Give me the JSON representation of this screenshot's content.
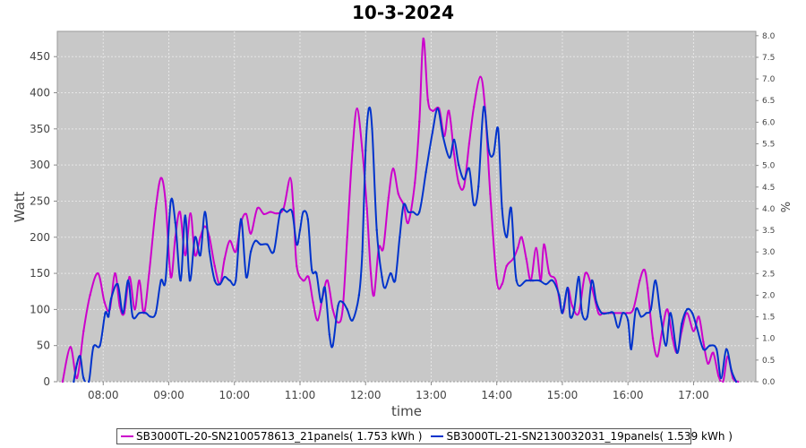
{
  "chart_data": {
    "type": "line",
    "title": "10-3-2024",
    "xlabel": "time",
    "ylabel": "Watt",
    "y2label": "%",
    "ylim": [
      0,
      485
    ],
    "y2lim": [
      0,
      8.1
    ],
    "xlim": [
      7.3,
      17.95
    ],
    "y_ticks": [
      "0",
      "50",
      "100",
      "150",
      "200",
      "250",
      "300",
      "350",
      "400",
      "450"
    ],
    "y2_ticks": [
      "0.0",
      "0.5",
      "1.0",
      "1.5",
      "2.0",
      "2.5",
      "3.0",
      "3.5",
      "4.0",
      "4.5",
      "5.0",
      "5.5",
      "6.0",
      "6.5",
      "7.0",
      "7.5",
      "8.0"
    ],
    "x_ticks": [
      {
        "label": "08:00",
        "value": 8
      },
      {
        "label": "09:00",
        "value": 9
      },
      {
        "label": "10:00",
        "value": 10
      },
      {
        "label": "11:00",
        "value": 11
      },
      {
        "label": "12:00",
        "value": 12
      },
      {
        "label": "13:00",
        "value": 13
      },
      {
        "label": "14:00",
        "value": 14
      },
      {
        "label": "15:00",
        "value": 15
      },
      {
        "label": "16:00",
        "value": 16
      },
      {
        "label": "17:00",
        "value": 17
      }
    ],
    "grid": true,
    "legend_position": "bottom",
    "colors": {
      "background": "#c8c8c8",
      "grid": "#e6e6e6"
    },
    "series": [
      {
        "name": "SB3000TL-20-SN2100578613_21panels( 1.753 kWh )",
        "color": "#cc00cc",
        "points": [
          [
            7.38,
            0
          ],
          [
            7.5,
            48
          ],
          [
            7.6,
            5
          ],
          [
            7.7,
            70
          ],
          [
            7.8,
            120
          ],
          [
            7.92,
            150
          ],
          [
            8.02,
            110
          ],
          [
            8.1,
            100
          ],
          [
            8.18,
            150
          ],
          [
            8.25,
            105
          ],
          [
            8.32,
            95
          ],
          [
            8.4,
            145
          ],
          [
            8.48,
            100
          ],
          [
            8.55,
            140
          ],
          [
            8.62,
            95
          ],
          [
            8.7,
            150
          ],
          [
            8.8,
            240
          ],
          [
            8.88,
            282
          ],
          [
            8.95,
            250
          ],
          [
            9.03,
            145
          ],
          [
            9.1,
            200
          ],
          [
            9.17,
            235
          ],
          [
            9.25,
            175
          ],
          [
            9.33,
            233
          ],
          [
            9.4,
            175
          ],
          [
            9.48,
            200
          ],
          [
            9.55,
            215
          ],
          [
            9.62,
            200
          ],
          [
            9.7,
            160
          ],
          [
            9.78,
            135
          ],
          [
            9.85,
            170
          ],
          [
            9.93,
            195
          ],
          [
            10.02,
            180
          ],
          [
            10.1,
            220
          ],
          [
            10.18,
            232
          ],
          [
            10.25,
            205
          ],
          [
            10.35,
            240
          ],
          [
            10.45,
            232
          ],
          [
            10.55,
            235
          ],
          [
            10.65,
            233
          ],
          [
            10.75,
            240
          ],
          [
            10.85,
            282
          ],
          [
            10.9,
            240
          ],
          [
            10.95,
            160
          ],
          [
            11.05,
            140
          ],
          [
            11.13,
            145
          ],
          [
            11.2,
            110
          ],
          [
            11.27,
            85
          ],
          [
            11.35,
            120
          ],
          [
            11.42,
            140
          ],
          [
            11.5,
            100
          ],
          [
            11.58,
            82
          ],
          [
            11.65,
            100
          ],
          [
            11.72,
            200
          ],
          [
            11.8,
            320
          ],
          [
            11.87,
            378
          ],
          [
            11.95,
            320
          ],
          [
            12.02,
            240
          ],
          [
            12.08,
            150
          ],
          [
            12.13,
            120
          ],
          [
            12.2,
            185
          ],
          [
            12.27,
            185
          ],
          [
            12.35,
            255
          ],
          [
            12.42,
            295
          ],
          [
            12.5,
            260
          ],
          [
            12.58,
            245
          ],
          [
            12.65,
            220
          ],
          [
            12.75,
            275
          ],
          [
            12.82,
            360
          ],
          [
            12.88,
            475
          ],
          [
            12.95,
            390
          ],
          [
            13.02,
            375
          ],
          [
            13.12,
            378
          ],
          [
            13.2,
            340
          ],
          [
            13.27,
            375
          ],
          [
            13.35,
            315
          ],
          [
            13.42,
            275
          ],
          [
            13.5,
            270
          ],
          [
            13.58,
            330
          ],
          [
            13.65,
            380
          ],
          [
            13.75,
            422
          ],
          [
            13.82,
            380
          ],
          [
            13.9,
            260
          ],
          [
            14.0,
            140
          ],
          [
            14.08,
            135
          ],
          [
            14.15,
            160
          ],
          [
            14.25,
            170
          ],
          [
            14.32,
            185
          ],
          [
            14.38,
            200
          ],
          [
            14.45,
            170
          ],
          [
            14.52,
            140
          ],
          [
            14.6,
            185
          ],
          [
            14.67,
            140
          ],
          [
            14.72,
            190
          ],
          [
            14.8,
            150
          ],
          [
            14.9,
            140
          ],
          [
            15.0,
            95
          ],
          [
            15.08,
            130
          ],
          [
            15.15,
            105
          ],
          [
            15.25,
            95
          ],
          [
            15.35,
            150
          ],
          [
            15.45,
            130
          ],
          [
            15.55,
            95
          ],
          [
            15.62,
            95
          ],
          [
            15.7,
            95
          ],
          [
            15.8,
            95
          ],
          [
            15.9,
            95
          ],
          [
            15.98,
            95
          ],
          [
            16.08,
            100
          ],
          [
            16.18,
            140
          ],
          [
            16.25,
            155
          ],
          [
            16.3,
            130
          ],
          [
            16.38,
            60
          ],
          [
            16.45,
            35
          ],
          [
            16.52,
            70
          ],
          [
            16.6,
            100
          ],
          [
            16.68,
            60
          ],
          [
            16.75,
            40
          ],
          [
            16.82,
            70
          ],
          [
            16.9,
            95
          ],
          [
            17.0,
            70
          ],
          [
            17.08,
            90
          ],
          [
            17.15,
            55
          ],
          [
            17.22,
            25
          ],
          [
            17.3,
            40
          ],
          [
            17.38,
            8
          ],
          [
            17.45,
            0
          ],
          [
            17.52,
            35
          ],
          [
            17.6,
            5
          ],
          [
            17.68,
            0
          ]
        ]
      },
      {
        "name": "SB3000TL-21-SN2130032031_19panels( 1.539 kWh )",
        "color": "#0033cc",
        "points": [
          [
            7.55,
            0
          ],
          [
            7.6,
            25
          ],
          [
            7.65,
            35
          ],
          [
            7.7,
            5
          ],
          [
            7.78,
            0
          ],
          [
            7.85,
            48
          ],
          [
            7.95,
            50
          ],
          [
            8.03,
            95
          ],
          [
            8.08,
            90
          ],
          [
            8.12,
            115
          ],
          [
            8.22,
            135
          ],
          [
            8.3,
            95
          ],
          [
            8.38,
            140
          ],
          [
            8.45,
            90
          ],
          [
            8.55,
            95
          ],
          [
            8.65,
            95
          ],
          [
            8.72,
            90
          ],
          [
            8.8,
            95
          ],
          [
            8.88,
            140
          ],
          [
            8.95,
            140
          ],
          [
            9.03,
            250
          ],
          [
            9.1,
            220
          ],
          [
            9.18,
            140
          ],
          [
            9.25,
            230
          ],
          [
            9.32,
            140
          ],
          [
            9.4,
            200
          ],
          [
            9.48,
            175
          ],
          [
            9.55,
            235
          ],
          [
            9.62,
            180
          ],
          [
            9.7,
            140
          ],
          [
            9.78,
            135
          ],
          [
            9.85,
            145
          ],
          [
            9.93,
            140
          ],
          [
            10.02,
            140
          ],
          [
            10.1,
            225
          ],
          [
            10.18,
            145
          ],
          [
            10.25,
            180
          ],
          [
            10.32,
            195
          ],
          [
            10.4,
            190
          ],
          [
            10.5,
            190
          ],
          [
            10.6,
            180
          ],
          [
            10.7,
            235
          ],
          [
            10.8,
            235
          ],
          [
            10.88,
            235
          ],
          [
            10.95,
            190
          ],
          [
            11.0,
            210
          ],
          [
            11.05,
            235
          ],
          [
            11.12,
            225
          ],
          [
            11.18,
            155
          ],
          [
            11.25,
            150
          ],
          [
            11.32,
            110
          ],
          [
            11.38,
            130
          ],
          [
            11.45,
            65
          ],
          [
            11.5,
            50
          ],
          [
            11.58,
            105
          ],
          [
            11.65,
            110
          ],
          [
            11.72,
            100
          ],
          [
            11.8,
            85
          ],
          [
            11.9,
            120
          ],
          [
            11.95,
            180
          ],
          [
            12.0,
            320
          ],
          [
            12.05,
            378
          ],
          [
            12.1,
            350
          ],
          [
            12.17,
            210
          ],
          [
            12.25,
            145
          ],
          [
            12.3,
            130
          ],
          [
            12.38,
            150
          ],
          [
            12.45,
            140
          ],
          [
            12.52,
            200
          ],
          [
            12.58,
            245
          ],
          [
            12.65,
            235
          ],
          [
            12.72,
            235
          ],
          [
            12.82,
            235
          ],
          [
            12.92,
            290
          ],
          [
            13.02,
            345
          ],
          [
            13.1,
            378
          ],
          [
            13.18,
            340
          ],
          [
            13.28,
            310
          ],
          [
            13.35,
            335
          ],
          [
            13.42,
            300
          ],
          [
            13.5,
            280
          ],
          [
            13.58,
            295
          ],
          [
            13.65,
            245
          ],
          [
            13.72,
            270
          ],
          [
            13.8,
            380
          ],
          [
            13.88,
            320
          ],
          [
            13.95,
            315
          ],
          [
            14.02,
            350
          ],
          [
            14.08,
            240
          ],
          [
            14.15,
            200
          ],
          [
            14.22,
            240
          ],
          [
            14.3,
            140
          ],
          [
            14.45,
            140
          ],
          [
            14.55,
            140
          ],
          [
            14.65,
            140
          ],
          [
            14.75,
            135
          ],
          [
            14.85,
            140
          ],
          [
            14.95,
            120
          ],
          [
            15.0,
            95
          ],
          [
            15.08,
            130
          ],
          [
            15.12,
            90
          ],
          [
            15.18,
            100
          ],
          [
            15.25,
            145
          ],
          [
            15.3,
            95
          ],
          [
            15.38,
            90
          ],
          [
            15.45,
            140
          ],
          [
            15.52,
            110
          ],
          [
            15.6,
            95
          ],
          [
            15.7,
            95
          ],
          [
            15.78,
            95
          ],
          [
            15.85,
            75
          ],
          [
            15.92,
            95
          ],
          [
            16.0,
            85
          ],
          [
            16.05,
            45
          ],
          [
            16.12,
            100
          ],
          [
            16.2,
            90
          ],
          [
            16.28,
            95
          ],
          [
            16.35,
            100
          ],
          [
            16.42,
            140
          ],
          [
            16.5,
            90
          ],
          [
            16.58,
            50
          ],
          [
            16.65,
            95
          ],
          [
            16.75,
            40
          ],
          [
            16.82,
            80
          ],
          [
            16.9,
            100
          ],
          [
            16.98,
            95
          ],
          [
            17.05,
            75
          ],
          [
            17.15,
            45
          ],
          [
            17.25,
            50
          ],
          [
            17.35,
            45
          ],
          [
            17.42,
            5
          ],
          [
            17.5,
            45
          ],
          [
            17.58,
            15
          ],
          [
            17.65,
            0
          ]
        ]
      }
    ]
  }
}
